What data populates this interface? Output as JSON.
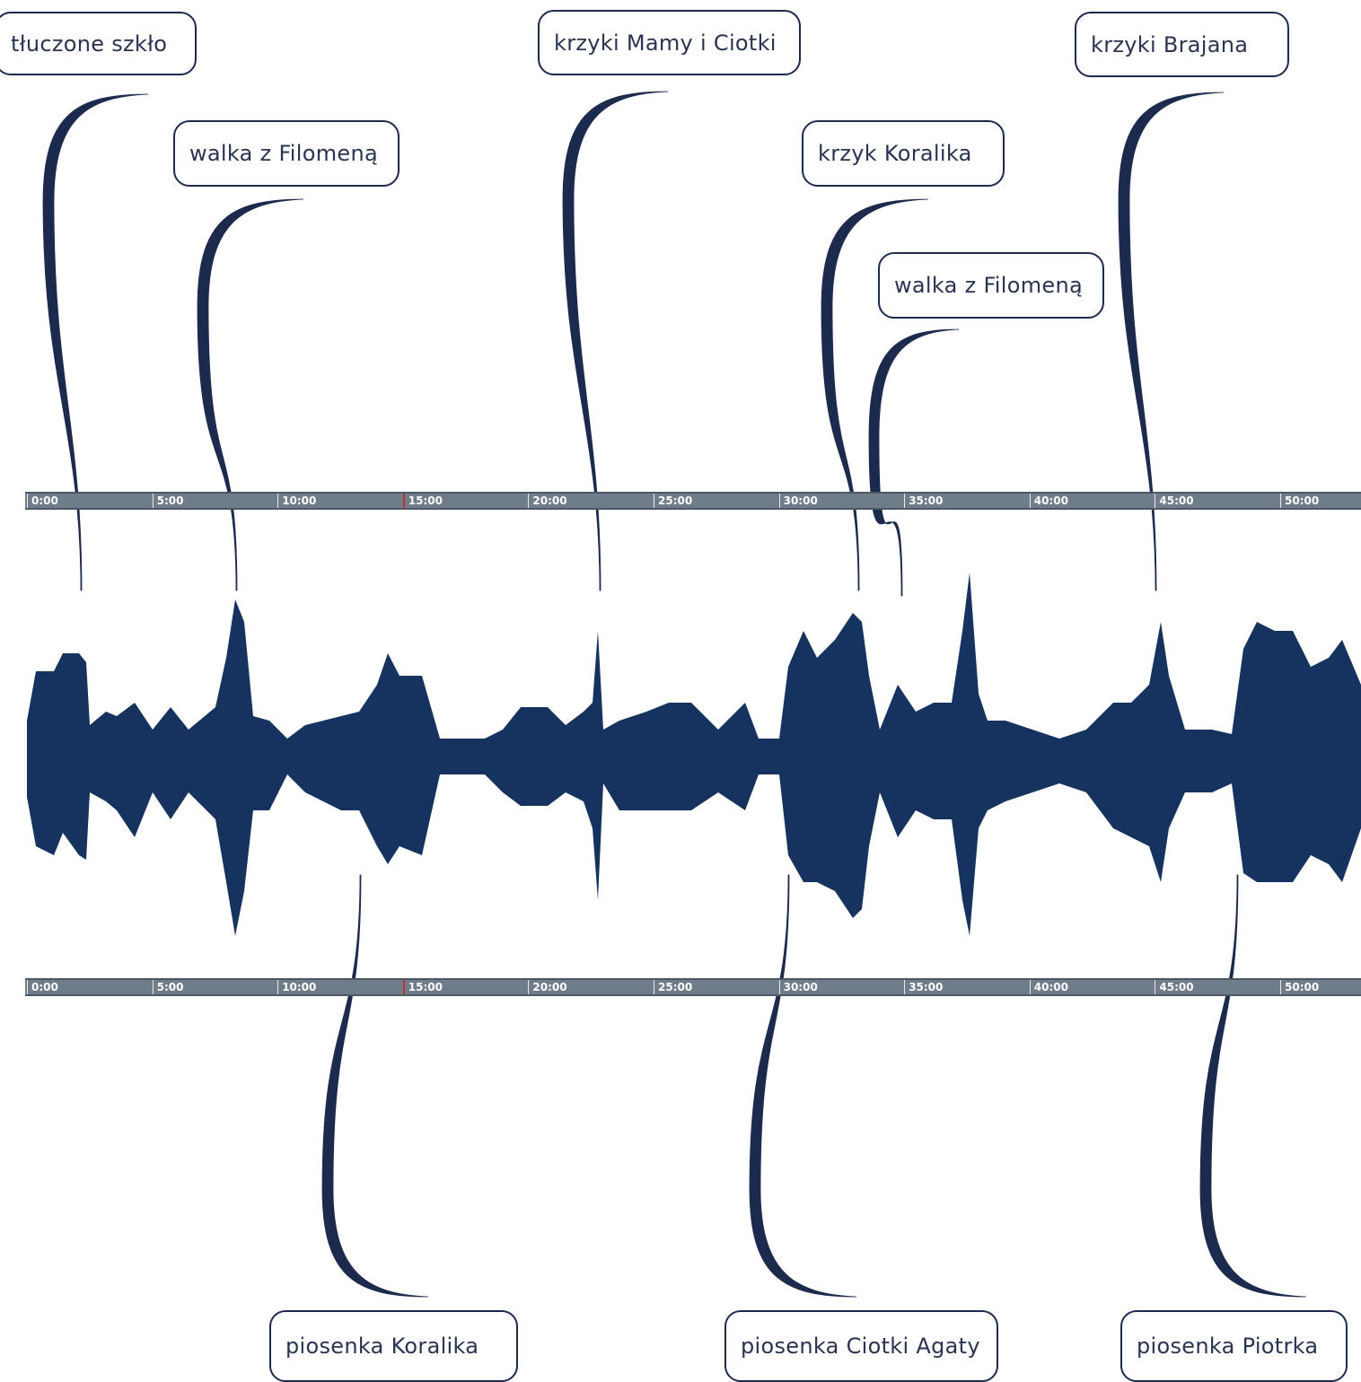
{
  "annotations_top": [
    {
      "label": "tłuczone szkło"
    },
    {
      "label": "walka z Filomeną"
    },
    {
      "label": "krzyki Mamy i Ciotki"
    },
    {
      "label": "krzyk Koralika"
    },
    {
      "label": "walka z Filomeną"
    },
    {
      "label": "krzyki Brajana"
    }
  ],
  "annotations_bottom": [
    {
      "label": "piosenka Koralika"
    },
    {
      "label": "piosenka Ciotki Agaty"
    },
    {
      "label": "piosenka Piotrka"
    }
  ],
  "timeline": {
    "ticks": [
      "0:00",
      "5:00",
      "10:00",
      "15:00",
      "20:00",
      "25:00",
      "30:00",
      "35:00",
      "40:00",
      "45:00",
      "50:00"
    ],
    "marker_tick": "15:00"
  },
  "colors": {
    "waveform": "#15335e",
    "leader": "#1c2a4e",
    "ruler": "#6f7c8a",
    "marker": "#c23030"
  }
}
